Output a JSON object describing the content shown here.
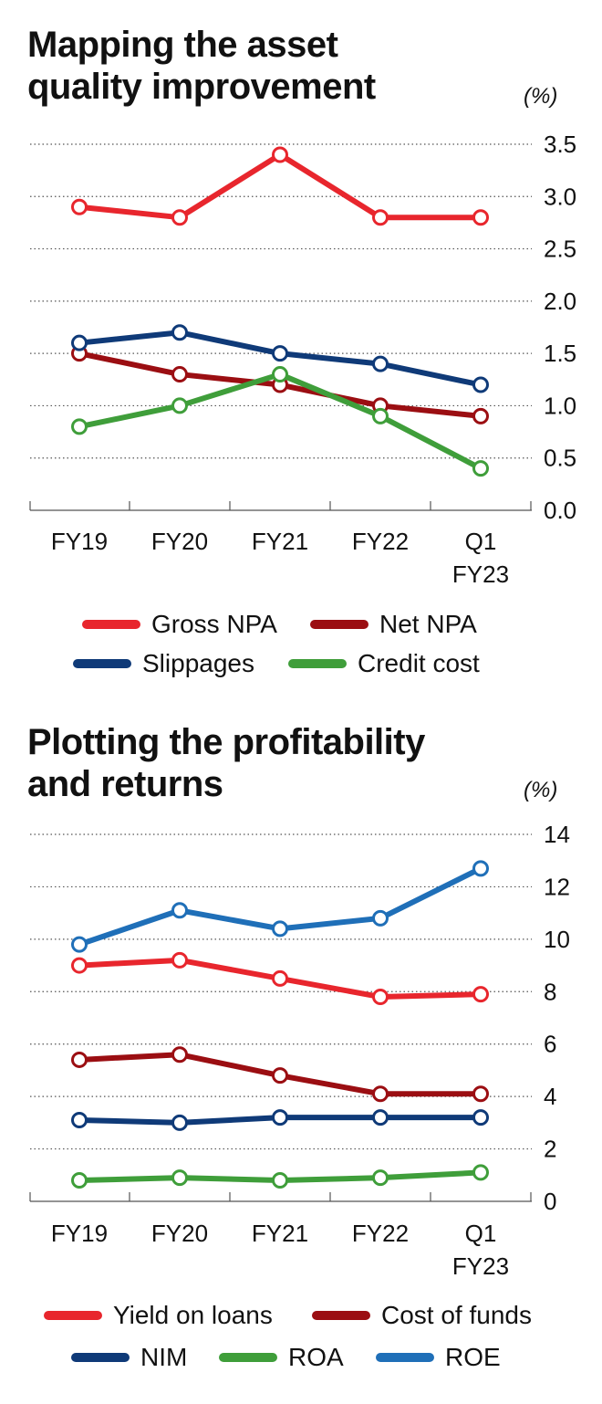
{
  "chart1": {
    "title_line1": "Mapping the asset",
    "title_line2": "quality improvement",
    "unit": "(%)",
    "legend": [
      {
        "name": "Gross NPA",
        "color": "#e8262d"
      },
      {
        "name": "Net NPA",
        "color": "#9b0e12"
      },
      {
        "name": "Slippages",
        "color": "#0f3a78"
      },
      {
        "name": "Credit cost",
        "color": "#3f9e3a"
      }
    ]
  },
  "chart2": {
    "title_line1": "Plotting the profitability",
    "title_line2": "and returns",
    "unit": "(%)",
    "legend": [
      {
        "name": "Yield on loans",
        "color": "#e8262d"
      },
      {
        "name": "Cost of funds",
        "color": "#9b0e12"
      },
      {
        "name": "NIM",
        "color": "#0f3a78"
      },
      {
        "name": "ROA",
        "color": "#3f9e3a"
      },
      {
        "name": "ROE",
        "color": "#1f6fb8"
      }
    ]
  },
  "chart_data": [
    {
      "type": "line",
      "title": "Mapping the asset quality improvement",
      "ylabel": "(%)",
      "categories": [
        "FY19",
        "FY20",
        "FY21",
        "FY22",
        "Q1 FY23"
      ],
      "category_lines": [
        [
          "FY19"
        ],
        [
          "FY20"
        ],
        [
          "FY21"
        ],
        [
          "FY22"
        ],
        [
          "Q1",
          "FY23"
        ]
      ],
      "yticks": [
        "3.5",
        "3.0",
        "2.5",
        "2.0",
        "1.5",
        "1.0",
        "0.5",
        "0.0"
      ],
      "ylim": [
        0,
        3.5
      ],
      "grid": true,
      "series": [
        {
          "name": "Gross NPA",
          "color": "#e8262d",
          "values": [
            2.9,
            2.8,
            3.4,
            2.8,
            2.8
          ]
        },
        {
          "name": "Net NPA",
          "color": "#9b0e12",
          "values": [
            1.5,
            1.3,
            1.2,
            1.0,
            0.9
          ]
        },
        {
          "name": "Slippages",
          "color": "#0f3a78",
          "values": [
            1.6,
            1.7,
            1.5,
            1.4,
            1.2
          ]
        },
        {
          "name": "Credit cost",
          "color": "#3f9e3a",
          "values": [
            0.8,
            1.0,
            1.3,
            0.9,
            0.4
          ]
        }
      ]
    },
    {
      "type": "line",
      "title": "Plotting the profitability and returns",
      "ylabel": "(%)",
      "categories": [
        "FY19",
        "FY20",
        "FY21",
        "FY22",
        "Q1 FY23"
      ],
      "category_lines": [
        [
          "FY19"
        ],
        [
          "FY20"
        ],
        [
          "FY21"
        ],
        [
          "FY22"
        ],
        [
          "Q1",
          "FY23"
        ]
      ],
      "yticks": [
        "14",
        "12",
        "10",
        "8",
        "6",
        "4",
        "2",
        "0"
      ],
      "ylim": [
        0,
        14
      ],
      "grid": true,
      "series": [
        {
          "name": "ROE",
          "color": "#1f6fb8",
          "values": [
            9.8,
            11.1,
            10.4,
            10.8,
            12.7
          ]
        },
        {
          "name": "Yield on loans",
          "color": "#e8262d",
          "values": [
            9.0,
            9.2,
            8.5,
            7.8,
            7.9
          ]
        },
        {
          "name": "Cost of funds",
          "color": "#9b0e12",
          "values": [
            5.4,
            5.6,
            4.8,
            4.1,
            4.1
          ]
        },
        {
          "name": "NIM",
          "color": "#0f3a78",
          "values": [
            3.1,
            3.0,
            3.2,
            3.2,
            3.2
          ]
        },
        {
          "name": "ROA",
          "color": "#3f9e3a",
          "values": [
            0.8,
            0.9,
            0.8,
            0.9,
            1.1
          ]
        }
      ]
    }
  ]
}
